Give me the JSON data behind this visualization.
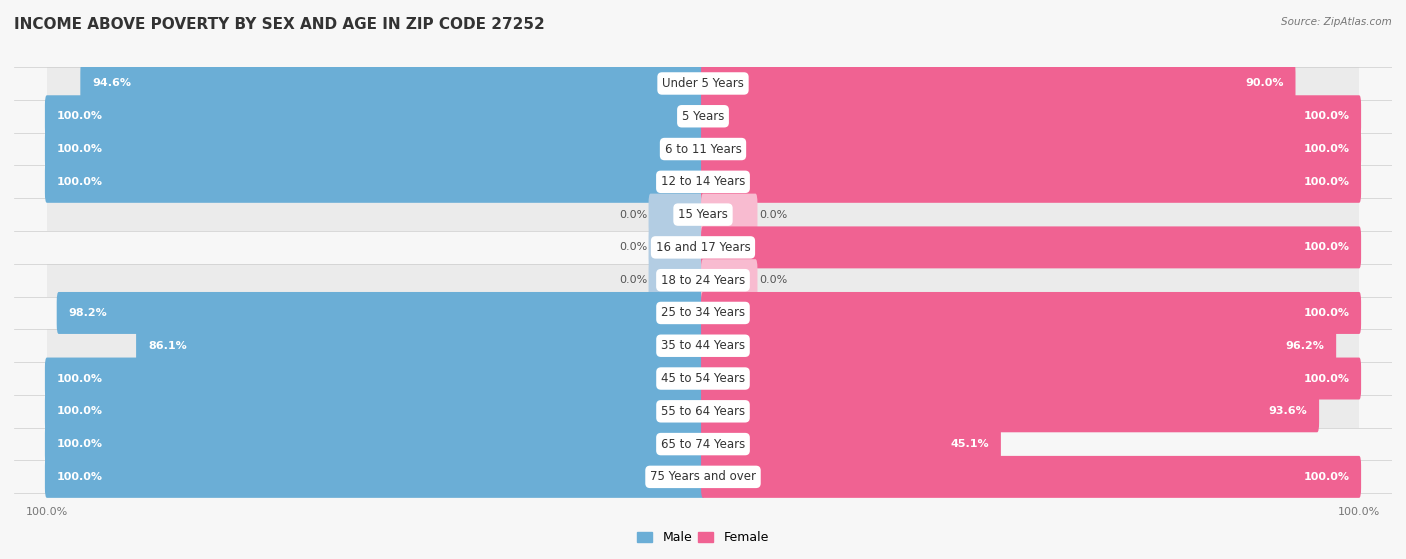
{
  "title": "INCOME ABOVE POVERTY BY SEX AND AGE IN ZIP CODE 27252",
  "source": "Source: ZipAtlas.com",
  "categories": [
    "Under 5 Years",
    "5 Years",
    "6 to 11 Years",
    "12 to 14 Years",
    "15 Years",
    "16 and 17 Years",
    "18 to 24 Years",
    "25 to 34 Years",
    "35 to 44 Years",
    "45 to 54 Years",
    "55 to 64 Years",
    "65 to 74 Years",
    "75 Years and over"
  ],
  "male": [
    94.6,
    100.0,
    100.0,
    100.0,
    0.0,
    0.0,
    0.0,
    98.2,
    86.1,
    100.0,
    100.0,
    100.0,
    100.0
  ],
  "female": [
    90.0,
    100.0,
    100.0,
    100.0,
    0.0,
    100.0,
    0.0,
    100.0,
    96.2,
    100.0,
    93.6,
    45.1,
    100.0
  ],
  "male_color": "#6baed6",
  "female_color": "#f06292",
  "male_color_light": "#b3cde3",
  "female_color_light": "#f8bbd0",
  "male_label": "Male",
  "female_label": "Female",
  "bg_color": "#f7f7f7",
  "row_color_dark": "#ebebeb",
  "row_color_light": "#f7f7f7",
  "title_fontsize": 11,
  "label_fontsize": 8.5,
  "value_fontsize": 8,
  "source_fontsize": 7.5
}
